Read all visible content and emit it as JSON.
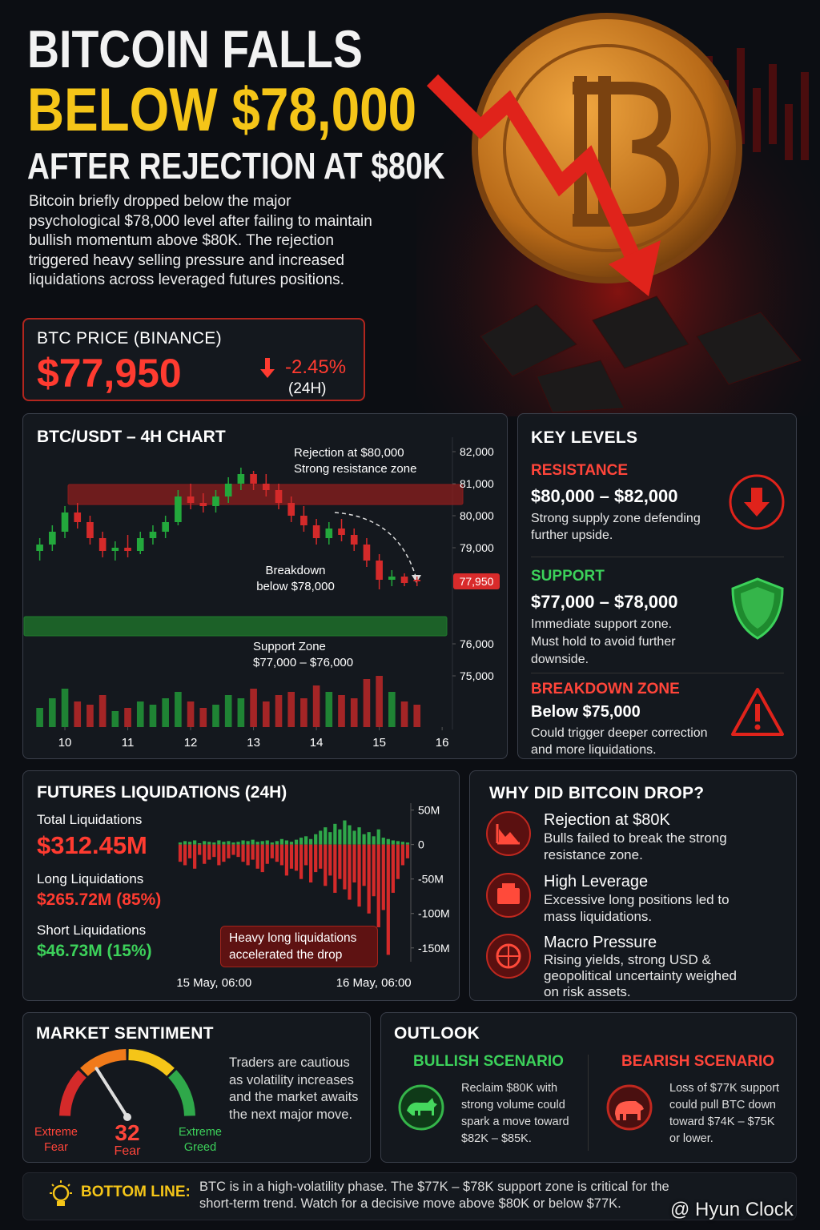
{
  "header": {
    "title_line1": "BITCOIN FALLS",
    "title_line2": "BELOW $78,000",
    "title_line3": "AFTER REJECTION AT $80K",
    "intro": "Bitcoin briefly dropped below the major psychological $78,000 level after failing to maintain bullish momentum above $80K. The rejection triggered heavy selling pressure and increased liquidations across leveraged futures positions."
  },
  "price_card": {
    "label": "BTC PRICE (BINANCE)",
    "price": "$77,950",
    "change": "-2.45%",
    "period": "(24H)"
  },
  "chart_data": [
    {
      "type": "candlestick",
      "title": "BTC/USDT – 4H CHART",
      "x": [
        9.6,
        9.8,
        10.0,
        10.2,
        10.4,
        10.6,
        10.8,
        11.0,
        11.2,
        11.4,
        11.6,
        11.8,
        12.0,
        12.2,
        12.4,
        12.6,
        12.8,
        13.0,
        13.2,
        13.4,
        13.6,
        13.8,
        14.0,
        14.2,
        14.4,
        14.6,
        14.8,
        15.0,
        15.2,
        15.4,
        15.6
      ],
      "open": [
        78900,
        79100,
        79500,
        80100,
        79800,
        79300,
        78900,
        79000,
        78900,
        79300,
        79500,
        79800,
        80600,
        80400,
        80300,
        80600,
        81000,
        81300,
        81000,
        80800,
        80400,
        80000,
        79700,
        79300,
        79600,
        79400,
        79100,
        78600,
        78000,
        78100,
        78000
      ],
      "high": [
        79300,
        79700,
        80300,
        80400,
        80000,
        79500,
        79200,
        79400,
        79500,
        79700,
        80000,
        80800,
        81000,
        80700,
        80800,
        81200,
        81500,
        81400,
        81300,
        81000,
        80600,
        80300,
        79900,
        79800,
        79900,
        79600,
        79300,
        78800,
        78300,
        78200,
        78100
      ],
      "low": [
        78600,
        78900,
        79300,
        79600,
        79100,
        78700,
        78600,
        78700,
        78800,
        79100,
        79300,
        79700,
        80200,
        80100,
        80100,
        80400,
        80800,
        80800,
        80600,
        80200,
        79800,
        79500,
        79100,
        79100,
        79200,
        78900,
        78400,
        77700,
        77800,
        77800,
        77800
      ],
      "close": [
        79100,
        79500,
        80100,
        79800,
        79300,
        78900,
        79000,
        78900,
        79300,
        79500,
        79800,
        80600,
        80400,
        80300,
        80600,
        81000,
        81300,
        81000,
        80800,
        80400,
        80000,
        79700,
        79300,
        79600,
        79400,
        79100,
        78600,
        78000,
        78100,
        77900,
        77950
      ],
      "volume": [
        30,
        45,
        60,
        40,
        35,
        50,
        25,
        30,
        40,
        35,
        45,
        55,
        40,
        30,
        35,
        50,
        45,
        60,
        40,
        50,
        55,
        45,
        65,
        55,
        50,
        45,
        75,
        80,
        55,
        40,
        35
      ],
      "volume_lim": [
        0,
        100
      ],
      "up_color": "#23a83c",
      "down_color": "#d42a2a",
      "xlim": [
        9.35,
        16.1
      ],
      "xticks": [
        10,
        11,
        12,
        13,
        14,
        15,
        16
      ],
      "ylim": [
        74700,
        82500
      ],
      "yticks": [
        {
          "value": 82000,
          "label": "82,000"
        },
        {
          "value": 81000,
          "label": "81,000"
        },
        {
          "value": 80000,
          "label": "80,000"
        },
        {
          "value": 79000,
          "label": "79,000"
        },
        {
          "value": 76000,
          "label": "76,000"
        },
        {
          "value": 75000,
          "label": "75,000"
        }
      ],
      "price_marker": {
        "value": 77950,
        "label": "77,950",
        "color": "#d92b2b"
      },
      "zones": [
        {
          "low": 80350,
          "high": 80975,
          "color": "#8c1d1d"
        },
        {
          "low": 76250,
          "high": 76850,
          "color": "#1f7a2c"
        }
      ],
      "annotations": [
        [
          "Rejection at $80,000",
          "Strong resistance zone"
        ],
        [
          "Breakdown",
          "below $78,000"
        ],
        [
          "Support Zone",
          "$77,000 – $76,000"
        ]
      ]
    },
    {
      "type": "bar",
      "title": "FUTURES LIQUIDATIONS (24H)",
      "categories": [
        null,
        null,
        null,
        null,
        null,
        null,
        null,
        "15 May, 06:00",
        null,
        null,
        null,
        null,
        null,
        null,
        null,
        null,
        null,
        null,
        null,
        null,
        null,
        null,
        null,
        null,
        null,
        null,
        null,
        null,
        null,
        null,
        null,
        null,
        null,
        null,
        null,
        null,
        null,
        null,
        null,
        null,
        "16 May, 06:00",
        null,
        null,
        null,
        null,
        null,
        null,
        null
      ],
      "series": [
        {
          "color": "#2fa84a",
          "values": [
            3,
            5,
            4,
            6,
            2,
            5,
            4,
            3,
            6,
            4,
            5,
            3,
            4,
            6,
            5,
            7,
            4,
            5,
            6,
            3,
            5,
            8,
            6,
            4,
            7,
            10,
            12,
            8,
            15,
            20,
            25,
            18,
            30,
            22,
            35,
            28,
            20,
            25,
            15,
            18,
            12,
            22,
            10,
            8,
            6,
            5,
            4,
            3
          ]
        },
        {
          "color": "#d42a2a",
          "values": [
            -25,
            -30,
            -20,
            -35,
            -15,
            -28,
            -22,
            -18,
            -30,
            -25,
            -20,
            -15,
            -18,
            -25,
            -30,
            -22,
            -35,
            -40,
            -28,
            -20,
            -25,
            -30,
            -45,
            -35,
            -38,
            -50,
            -30,
            -55,
            -40,
            -35,
            -60,
            -45,
            -70,
            -50,
            -65,
            -80,
            -55,
            -90,
            -60,
            -100,
            -75,
            -120,
            -95,
            -160,
            -70,
            -50,
            -30,
            -20
          ]
        }
      ],
      "ylim": [
        -170,
        60
      ],
      "yticks": [
        {
          "value": 50,
          "label": "50M"
        },
        0,
        {
          "value": -50,
          "label": "-50M"
        },
        {
          "value": -100,
          "label": "-100M"
        },
        {
          "value": -150,
          "label": "-150M"
        }
      ],
      "annotation": "Heavy long liquidations accelerated the drop"
    }
  ],
  "liquidation_stats": {
    "total_label": "Total Liquidations",
    "total": "$312.45M",
    "long_label": "Long Liquidations",
    "long": "$265.72M (85%)",
    "short_label": "Short Liquidations",
    "short": "$46.73M (15%)"
  },
  "key_levels": {
    "title": "KEY LEVELS",
    "items": [
      {
        "heading": "RESISTANCE",
        "range": "$80,000 – $82,000",
        "text": "Strong supply zone defending further upside."
      },
      {
        "heading": "SUPPORT",
        "range": "$77,000 – $78,000",
        "text": "Immediate support zone. Must hold to avoid further downside."
      },
      {
        "heading": "BREAKDOWN ZONE",
        "range": "Below $75,000",
        "text": "Could trigger deeper correction and more liquidations."
      }
    ]
  },
  "why": {
    "title": "WHY DID BITCOIN DROP?",
    "items": [
      {
        "heading": "Rejection at $80K",
        "text": "Bulls failed to break the strong resistance zone."
      },
      {
        "heading": "High Leverage",
        "text": "Excessive long positions led to mass liquidations."
      },
      {
        "heading": "Macro Pressure",
        "text": "Rising yields, strong USD & geopolitical uncertainty weighed on risk assets."
      }
    ]
  },
  "sentiment": {
    "title": "MARKET SENTIMENT",
    "value": 32,
    "value_label": "Fear",
    "range": [
      0,
      100
    ],
    "min_label": "Extreme Fear",
    "max_label": "Extreme Greed",
    "text": "Traders are cautious as volatility increases and the market awaits the next major move."
  },
  "outlook": {
    "title": "OUTLOOK",
    "bullish": {
      "heading": "BULLISH SCENARIO",
      "text": "Reclaim $80K with strong volume could spark a move toward $82K – $85K."
    },
    "bearish": {
      "heading": "BEARISH SCENARIO",
      "text": "Loss of $77K support could pull BTC down toward $74K – $75K or lower."
    }
  },
  "bottom_line": {
    "label": "BOTTOM LINE:",
    "text": "BTC is in a high-volatility phase. The $77K – $78K support zone is critical for the short-term trend. Watch for a decisive move above $80K or below $77K.",
    "watermark": "@ Hyun Clock"
  }
}
